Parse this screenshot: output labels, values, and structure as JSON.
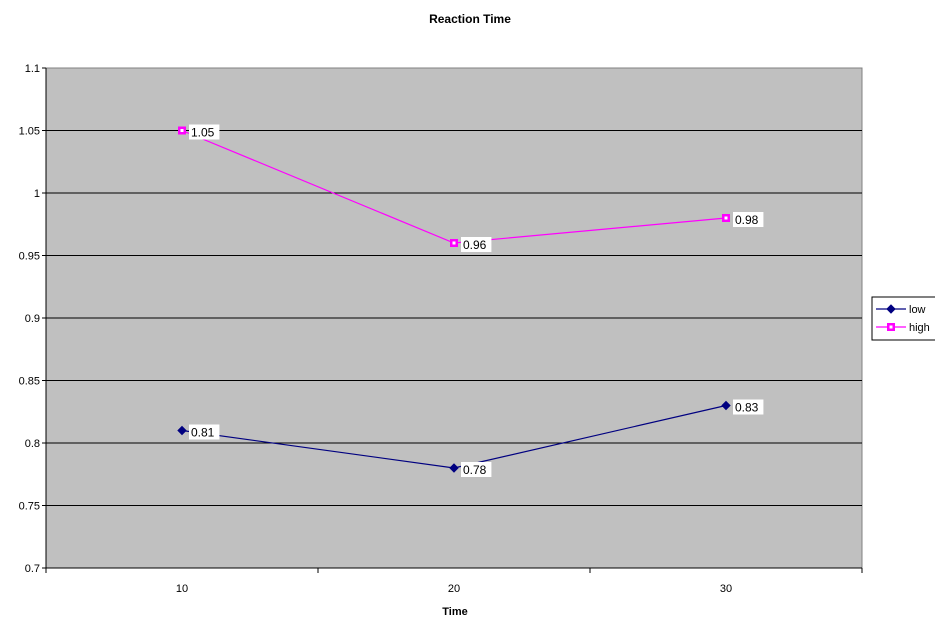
{
  "chart_data": {
    "type": "line",
    "title": "Reaction Time",
    "xlabel": "Time",
    "ylabel": "",
    "categories": [
      "10",
      "20",
      "30"
    ],
    "ylim": [
      0.7,
      1.1
    ],
    "yticks": [
      "0.7",
      "0.75",
      "0.8",
      "0.85",
      "0.9",
      "0.95",
      "1",
      "1.05",
      "1.1"
    ],
    "grid": true,
    "legend_position": "right",
    "plot_background": "#c0c0c0",
    "series": [
      {
        "name": "low",
        "values": [
          0.81,
          0.78,
          0.83
        ],
        "labels": [
          "0.81",
          "0.78",
          "0.83"
        ],
        "color": "#000080",
        "marker": "diamond"
      },
      {
        "name": "high",
        "values": [
          1.05,
          0.96,
          0.98
        ],
        "labels": [
          "1.05",
          "0.96",
          "0.98"
        ],
        "color": "#ff00ff",
        "marker": "square"
      }
    ]
  }
}
